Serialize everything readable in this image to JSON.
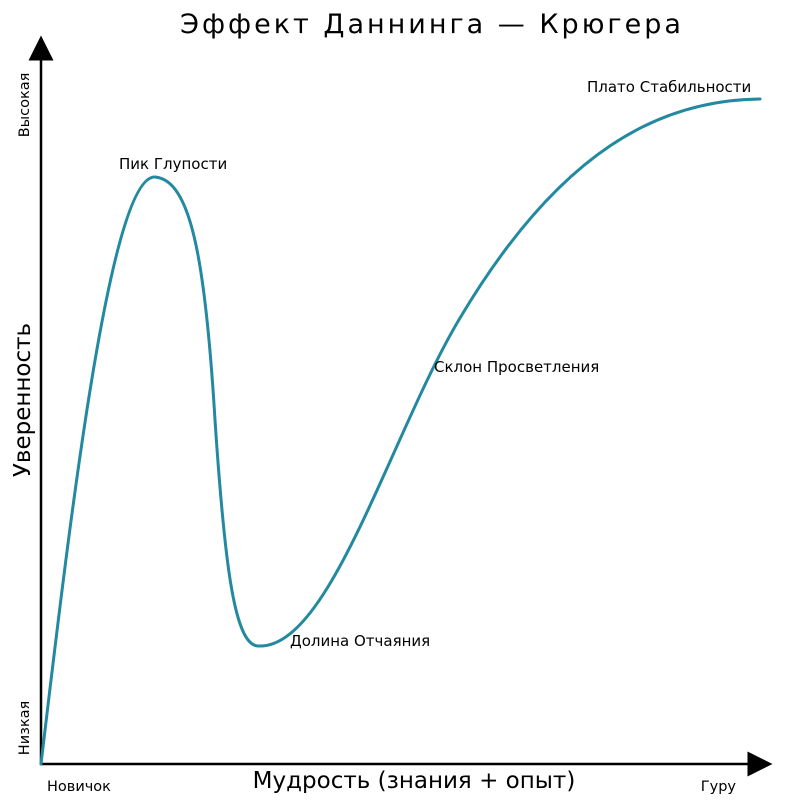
{
  "title": "Эффект Даннинга — Крюгера",
  "colors": {
    "curve": "#2389a0",
    "axis": "#000000",
    "background": "#ffffff"
  },
  "x_axis": {
    "label": "Мудрость (знания + опыт)",
    "min_label": "Новичок",
    "max_label": "Гуру"
  },
  "y_axis": {
    "label": "Уверенность",
    "min_label": "Низкая",
    "max_label": "Высокая"
  },
  "annotations": {
    "peak": "Пик Глупости",
    "valley": "Долина Отчаяния",
    "slope": "Склон Просветления",
    "plateau": "Плато Стабильности"
  },
  "chart_data": {
    "type": "line",
    "title": "Эффект Даннинга — Крюгера",
    "xlabel": "Мудрость (знания + опыт)",
    "ylabel": "Уверенность",
    "xlim": [
      0,
      1
    ],
    "ylim": [
      0,
      1
    ],
    "grid": false,
    "x_tick_labels": [
      "Новичок",
      "Гуру"
    ],
    "y_tick_labels": [
      "Низкая",
      "Высокая"
    ],
    "series": [
      {
        "points": [
          [
            0.0,
            0.0
          ],
          [
            0.02,
            0.2
          ],
          [
            0.05,
            0.48
          ],
          [
            0.09,
            0.73
          ],
          [
            0.13,
            0.85
          ],
          [
            0.16,
            0.856
          ],
          [
            0.19,
            0.76
          ],
          [
            0.22,
            0.35
          ],
          [
            0.25,
            0.17
          ],
          [
            0.3,
            0.15
          ],
          [
            0.4,
            0.22
          ],
          [
            0.5,
            0.42
          ],
          [
            0.6,
            0.6
          ],
          [
            0.7,
            0.75
          ],
          [
            0.8,
            0.86
          ],
          [
            0.9,
            0.92
          ],
          [
            0.99,
            0.94
          ]
        ]
      }
    ],
    "annotations": [
      {
        "text": "Пик Глупости",
        "x": 0.16,
        "y": 0.856
      },
      {
        "text": "Долина Отчаяния",
        "x": 0.3,
        "y": 0.15
      },
      {
        "text": "Склон Просветления",
        "x": 0.56,
        "y": 0.55
      },
      {
        "text": "Плато Стабильности",
        "x": 0.96,
        "y": 0.94
      }
    ]
  }
}
